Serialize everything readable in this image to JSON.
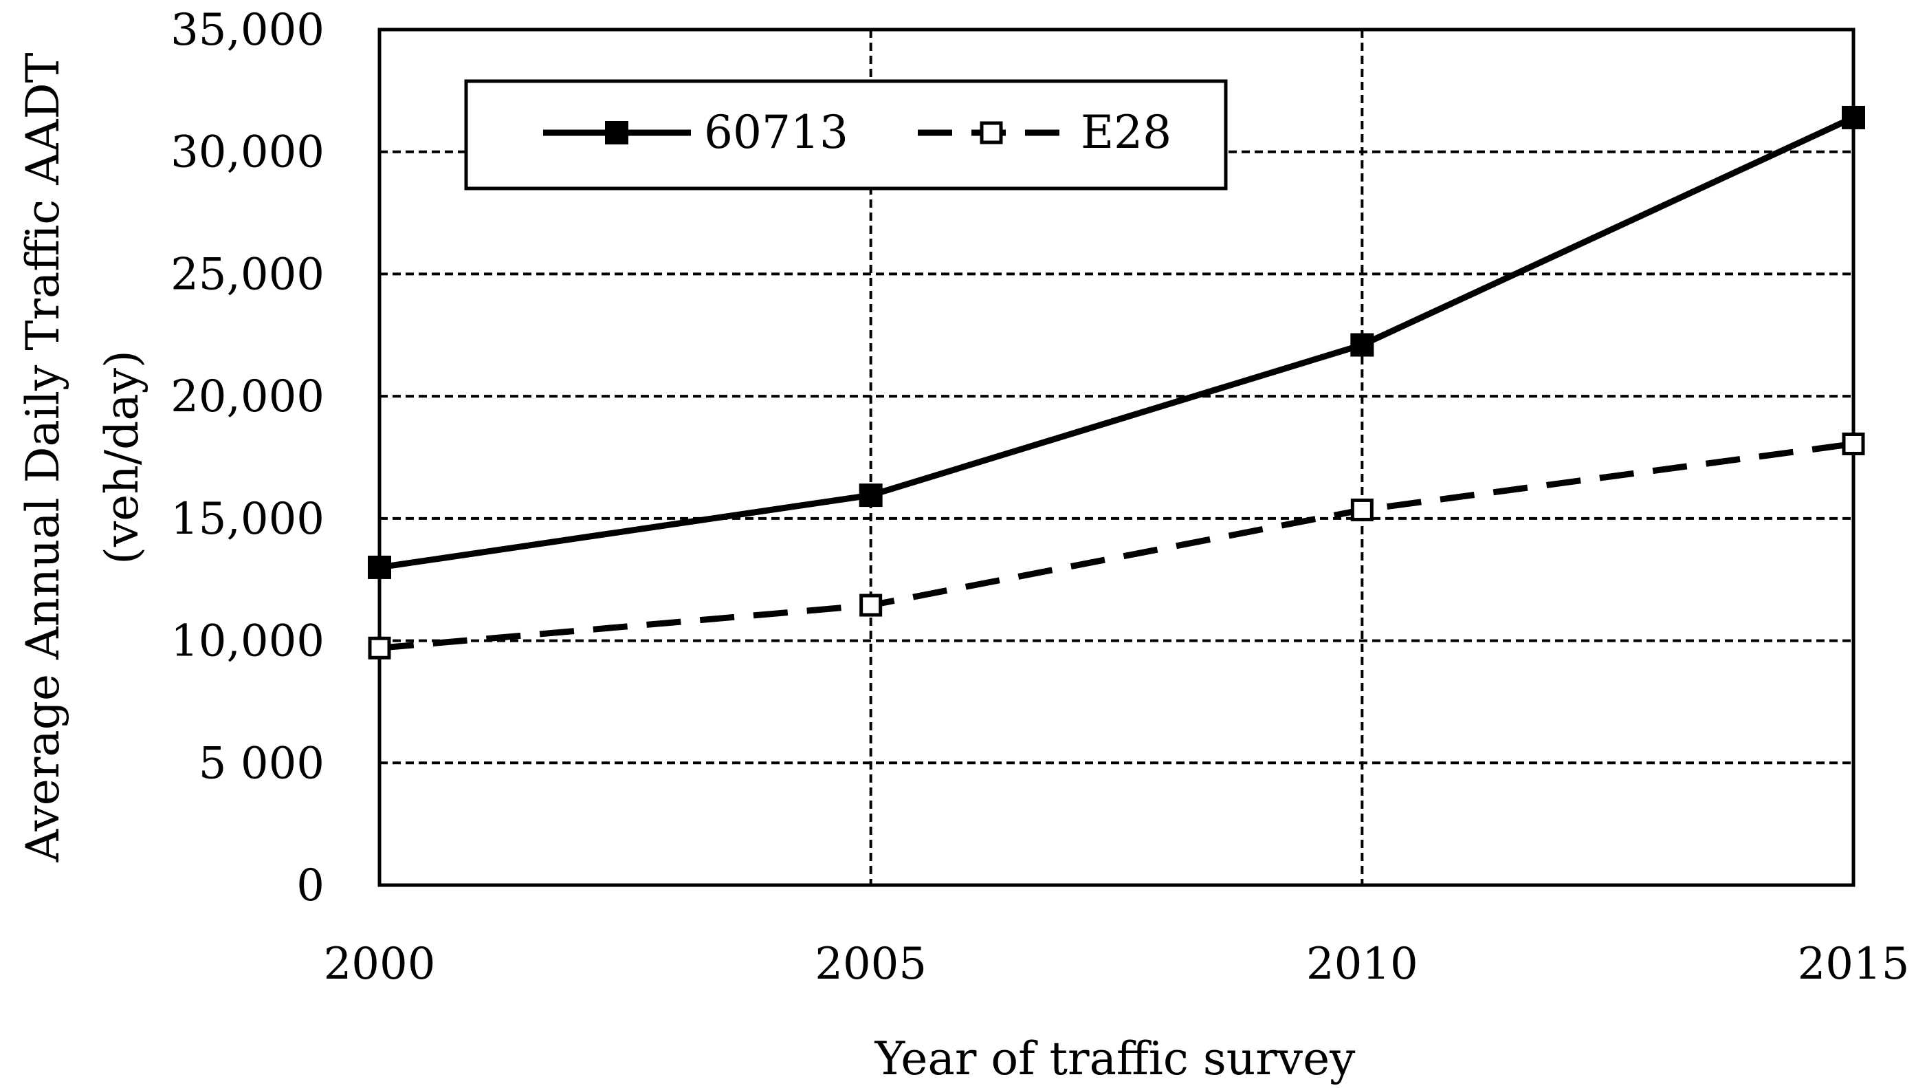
{
  "chart_data": {
    "type": "line",
    "x": [
      2000,
      2005,
      2010,
      2015
    ],
    "series": [
      {
        "name": "60713",
        "values": [
          13000,
          15950,
          22100,
          31400
        ],
        "line_style": "solid",
        "marker": "filled-square"
      },
      {
        "name": "E28",
        "values": [
          9700,
          11450,
          15350,
          18050
        ],
        "line_style": "dashed",
        "marker": "open-square"
      }
    ],
    "xlabel": "Year of traffic survey",
    "ylabel_lines": [
      "Average Annual Daily Traffic AADT",
      "(veh/day)"
    ],
    "xlim": [
      2000,
      2015
    ],
    "ylim": [
      0,
      35000
    ],
    "x_ticks": [
      2000,
      2005,
      2010,
      2015
    ],
    "x_tick_labels": [
      "2000",
      "2005",
      "2010",
      "2015"
    ],
    "y_ticks": [
      0,
      5000,
      10000,
      15000,
      20000,
      25000,
      30000,
      35000
    ],
    "y_tick_labels": [
      "0",
      "5 000",
      "10,000",
      "15,000",
      "20,000",
      "25,000",
      "30,000",
      "35,000"
    ],
    "grid": true,
    "grid_style": "dashed",
    "legend_position": "top-left",
    "colors": {
      "series": "#000000",
      "grid": "#000000",
      "background": "#ffffff"
    }
  }
}
